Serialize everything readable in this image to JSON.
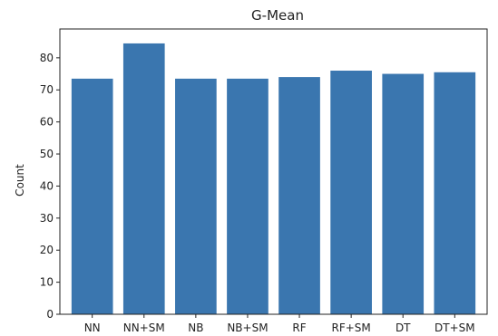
{
  "chart_data": {
    "type": "bar",
    "title": "G-Mean",
    "xlabel": "",
    "ylabel": "Count",
    "categories": [
      "NN",
      "NN+SM",
      "NB",
      "NB+SM",
      "RF",
      "RF+SM",
      "DT",
      "DT+SM"
    ],
    "values": [
      73.5,
      84.5,
      73.5,
      73.5,
      74.0,
      76.0,
      75.0,
      75.5
    ],
    "ylim": [
      0,
      89
    ],
    "yticks": [
      0,
      10,
      20,
      30,
      40,
      50,
      60,
      70,
      80
    ],
    "bar_color": "#3a76af",
    "grid": false,
    "legend": "none"
  }
}
